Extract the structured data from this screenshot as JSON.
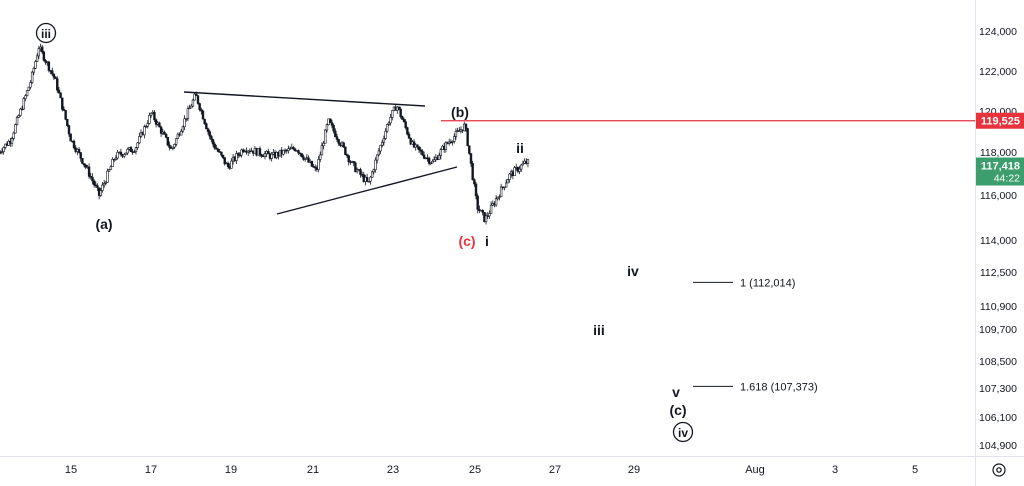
{
  "chart_data": {
    "type": "candlestick",
    "title": "",
    "xlabel": "",
    "ylabel": "",
    "x_ticks": [
      "15",
      "17",
      "19",
      "21",
      "23",
      "25",
      "27",
      "29",
      "Aug",
      "3",
      "5"
    ],
    "y_ticks": [
      "124,000",
      "122,000",
      "120,000",
      "118,000",
      "116,000",
      "114,000",
      "112,500",
      "110,900",
      "109,700",
      "108,500",
      "107,300",
      "106,100",
      "104,900"
    ],
    "ylim": [
      104400,
      124900
    ],
    "grid": false,
    "price_levels": [
      {
        "label": "119,525",
        "value": 119525,
        "color": "#e8333c"
      },
      {
        "label": "117,418",
        "sub": "44:22",
        "value": 117418,
        "color": "#3c9e6c"
      }
    ],
    "projections": [
      {
        "label": "1 (112,014)",
        "value": 112014
      },
      {
        "label": "1.618 (107,373)",
        "value": 107373
      }
    ],
    "wave_labels": [
      {
        "text": "iii",
        "circled": true,
        "color": "#131722"
      },
      {
        "text": "(a)",
        "circled": false,
        "color": "#131722"
      },
      {
        "text": "(b)",
        "circled": false,
        "color": "#131722"
      },
      {
        "text": "(c)",
        "circled": false,
        "color": "#e8333c"
      },
      {
        "text": "i",
        "circled": false,
        "color": "#131722"
      },
      {
        "text": "ii",
        "circled": false,
        "color": "#131722"
      },
      {
        "text": "iv",
        "circled": false,
        "color": "#131722"
      },
      {
        "text": "iii",
        "circled": false,
        "color": "#131722"
      },
      {
        "text": "v",
        "circled": false,
        "color": "#131722"
      },
      {
        "text": "(c)",
        "circled": false,
        "color": "#131722"
      },
      {
        "text": "iv",
        "circled": true,
        "color": "#131722"
      }
    ],
    "series": [
      {
        "path": [
          [
            "Jul 13",
            117600
          ],
          [
            "Jul 13.5",
            118600
          ],
          [
            "Jul 14",
            121500
          ],
          [
            "Jul 14.2",
            123200
          ],
          [
            "Jul 14.6",
            121600
          ],
          [
            "Jul 15",
            118600
          ],
          [
            "Jul 15.4",
            117200
          ],
          [
            "Jul 15.7",
            116000
          ],
          [
            "Jul 16.1",
            117800
          ],
          [
            "Jul 16.6",
            118200
          ],
          [
            "Jul 17",
            119900
          ],
          [
            "Jul 17.5",
            118100
          ],
          [
            "Jul 18.1",
            120800
          ],
          [
            "Jul 18.5",
            118500
          ],
          [
            "Jul 18.9",
            117300
          ],
          [
            "Jul 19.3",
            118200
          ],
          [
            "Jul 20",
            117800
          ],
          [
            "Jul 20.6",
            118200
          ],
          [
            "Jul 21.1",
            117100
          ],
          [
            "Jul 21.4",
            119500
          ],
          [
            "Jul 22",
            117400
          ],
          [
            "Jul 22.4",
            116500
          ],
          [
            "Jul 22.9",
            119500
          ],
          [
            "Jul 23.1",
            120300
          ],
          [
            "Jul 23.5",
            118300
          ],
          [
            "Jul 24",
            117500
          ],
          [
            "Jul 24.3",
            118300
          ],
          [
            "Jul 24.8",
            119300
          ],
          [
            "Jul 25.1",
            115500
          ],
          [
            "Jul 25.3",
            114900
          ],
          [
            "Jul 25.6",
            115900
          ],
          [
            "Jul 25.9",
            116900
          ],
          [
            "Jul 26.3",
            117500
          ]
        ]
      }
    ]
  },
  "ui": {
    "settings_icon": "gear-icon"
  }
}
